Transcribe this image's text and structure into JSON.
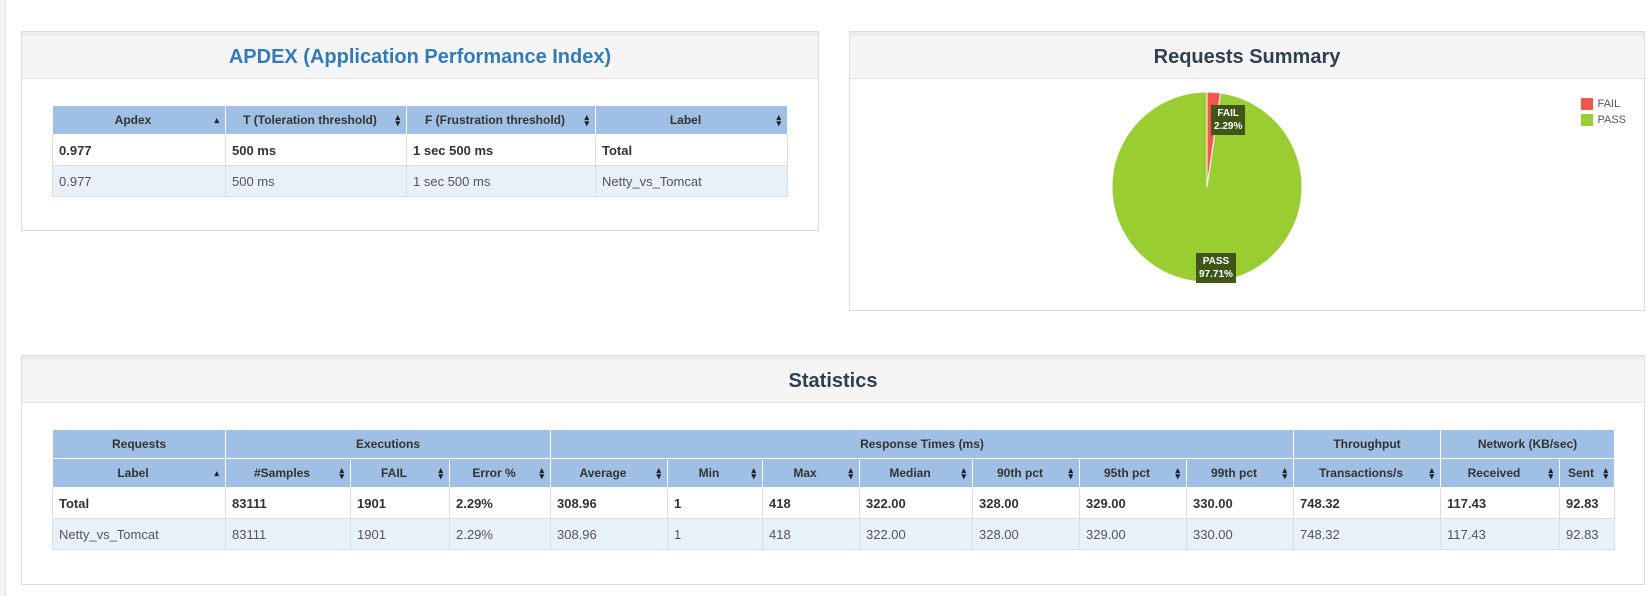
{
  "apdex": {
    "title": "APDEX (Application Performance Index)",
    "columns": [
      "Apdex",
      "T (Toleration threshold)",
      "F (Frustration threshold)",
      "Label"
    ],
    "rows": [
      [
        "0.977",
        "500 ms",
        "1 sec 500 ms",
        "Total"
      ],
      [
        "0.977",
        "500 ms",
        "1 sec 500 ms",
        "Netty_vs_Tomcat"
      ]
    ]
  },
  "summary": {
    "title": "Requests Summary",
    "legend": [
      {
        "name": "FAIL",
        "color": "#f0584c"
      },
      {
        "name": "PASS",
        "color": "#9acd32"
      }
    ],
    "labels": {
      "fail_name": "FAIL",
      "fail_pct": "2.29%",
      "pass_name": "PASS",
      "pass_pct": "97.71%"
    }
  },
  "chart_data": {
    "type": "pie",
    "title": "Requests Summary",
    "categories": [
      "FAIL",
      "PASS"
    ],
    "values": [
      2.29,
      97.71
    ],
    "colors": [
      "#f0584c",
      "#9acd32"
    ],
    "legend_placement": "top-right"
  },
  "statistics": {
    "title": "Statistics",
    "groups": [
      "Requests",
      "Executions",
      "Response Times (ms)",
      "Throughput",
      "Network (KB/sec)"
    ],
    "columns": [
      "Label",
      "#Samples",
      "FAIL",
      "Error %",
      "Average",
      "Min",
      "Max",
      "Median",
      "90th pct",
      "95th pct",
      "99th pct",
      "Transactions/s",
      "Received",
      "Sent"
    ],
    "rows": [
      [
        "Total",
        "83111",
        "1901",
        "2.29%",
        "308.96",
        "1",
        "418",
        "322.00",
        "328.00",
        "329.00",
        "330.00",
        "748.32",
        "117.43",
        "92.83"
      ],
      [
        "Netty_vs_Tomcat",
        "83111",
        "1901",
        "2.29%",
        "308.96",
        "1",
        "418",
        "322.00",
        "328.00",
        "329.00",
        "330.00",
        "748.32",
        "117.43",
        "92.83"
      ]
    ]
  }
}
